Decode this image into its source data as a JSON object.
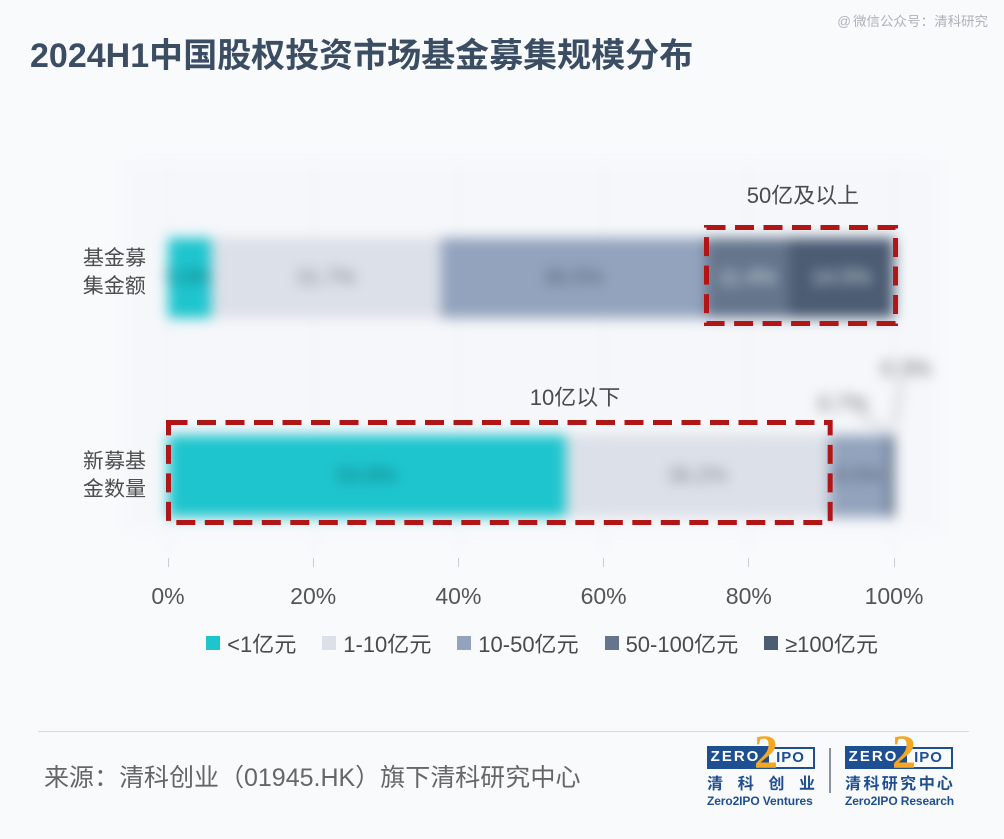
{
  "title": "2024H1中国股权投资市场基金募集规模分布",
  "watermark": {
    "icon": "@",
    "text": "微信公众号：清科研究"
  },
  "chart_data": {
    "type": "bar",
    "orientation": "horizontal-stacked",
    "unit": "%",
    "categories": [
      "基金募集金额",
      "新募基金数量"
    ],
    "series": [
      {
        "name": "<1亿元",
        "color": "#1ec5ce",
        "label_color": "#0f6e76",
        "values": [
          5.9,
          54.8
        ]
      },
      {
        "name": "1-10亿元",
        "color": "#dce0e8",
        "label_color": "#767c87",
        "values": [
          31.7,
          36.2
        ]
      },
      {
        "name": "10-50亿元",
        "color": "#93a3bd",
        "label_color": "#4e5a6a",
        "values": [
          36.5,
          8.0
        ]
      },
      {
        "name": "50-100亿元",
        "color": "#64758c",
        "label_color": "#e9edf3",
        "values": [
          11.4,
          0.7
        ]
      },
      {
        "name": "≥100亿元",
        "color": "#4b5c73",
        "label_color": "#e9edf3",
        "values": [
          14.5,
          0.3
        ]
      }
    ],
    "xlabel": "",
    "ylabel": "",
    "xlim": [
      0,
      100
    ],
    "x_ticks": [
      "0%",
      "20%",
      "40%",
      "60%",
      "80%",
      "100%"
    ],
    "grid": true,
    "legend_position": "bottom",
    "annotations": [
      {
        "text": "50亿及以上",
        "bar": 0,
        "from_series": 3,
        "to_series": 4,
        "style": "red-dashed-box"
      },
      {
        "text": "10亿以下",
        "bar": 1,
        "from_series": 0,
        "to_series": 1,
        "style": "red-dashed-box"
      }
    ],
    "outside_labels": [
      {
        "bar": 1,
        "series": 3,
        "text": "0.7%"
      },
      {
        "bar": 1,
        "series": 4,
        "text": "0.3%"
      }
    ]
  },
  "footer": {
    "source": "来源：清科创业（01945.HK）旗下清科研究中心",
    "logos": [
      {
        "zero": "ZERO",
        "two": "2",
        "ipo": "IPO",
        "cn": "清科创业",
        "en": "Zero2IPO Ventures"
      },
      {
        "zero": "ZERO",
        "two": "2",
        "ipo": "IPO",
        "cn": "清科研究中心",
        "en": "Zero2IPO Research"
      }
    ]
  },
  "colors": {
    "background": "#f9fafc",
    "plot_background": "#f5f7fa",
    "gridline": "#e8ebf1",
    "title": "#3b4d63",
    "text": "#4a4a4a",
    "axis_text": "#555555",
    "watermark": "#b7bcc2",
    "annotation_red": "#b21515",
    "footer_text": "#666666",
    "divider": "#dadada",
    "logo_blue": "#1d4f91",
    "logo_orange": "#f5a623"
  }
}
